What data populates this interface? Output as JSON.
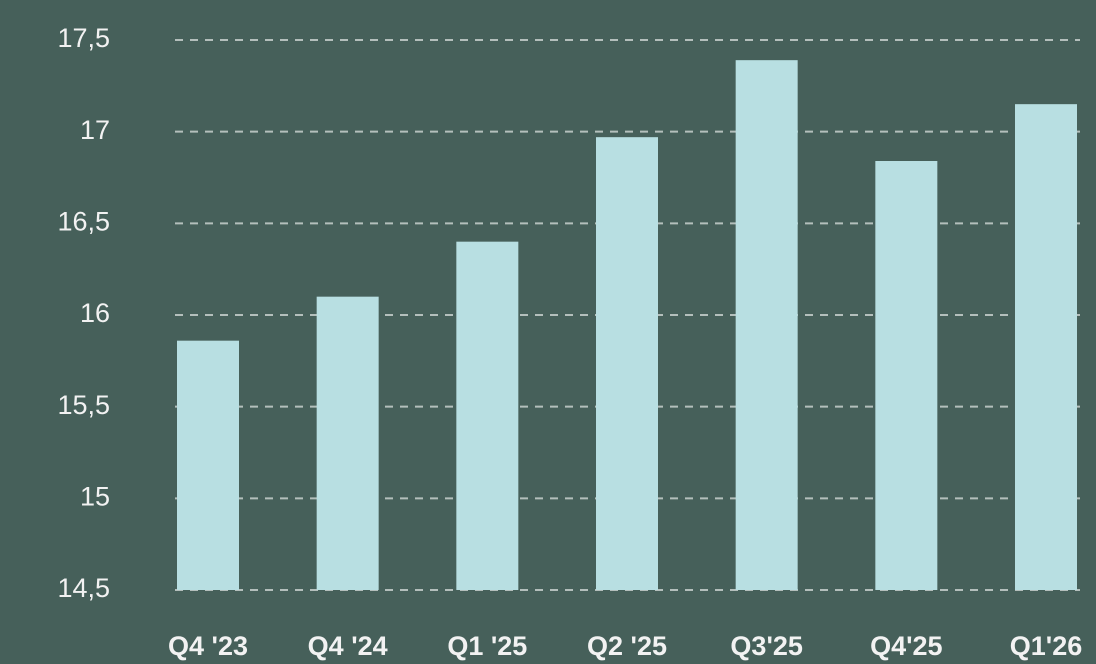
{
  "chart_data": {
    "type": "bar",
    "categories": [
      "Q4 '23",
      "Q4 '24",
      "Q1 '25",
      "Q2 '25",
      "Q3'25",
      "Q4'25",
      "Q1'26"
    ],
    "values": [
      15.86,
      16.1,
      16.4,
      16.97,
      17.39,
      16.84,
      17.15
    ],
    "color": "#b8dfe2",
    "ylim": [
      14.5,
      17.5
    ],
    "yticks": [
      {
        "value": 14.5,
        "label": "14,5"
      },
      15,
      {
        "value": 15.5,
        "label": "15,5"
      },
      16,
      {
        "value": 16.5,
        "label": "16,5"
      },
      17,
      {
        "value": 17.5,
        "label": "17,5"
      }
    ],
    "grid": true
  }
}
